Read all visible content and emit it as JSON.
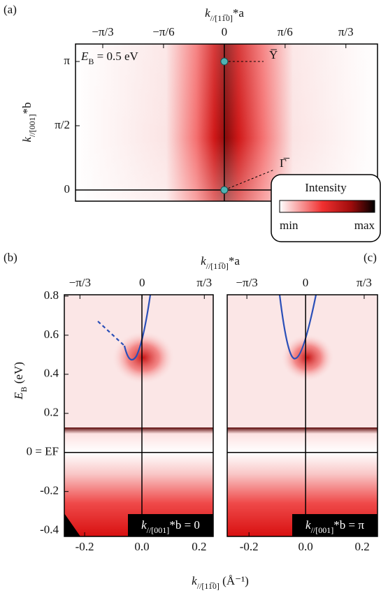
{
  "chart_data": [
    {
      "type": "heatmap",
      "panel_label": "(a)",
      "xlabel": [
        "k",
        "//[11̅0]",
        "*a"
      ],
      "ylabel": [
        "k",
        "//[001]",
        "*b"
      ],
      "inset": [
        "E",
        "B",
        " = 0.5 eV"
      ],
      "annotations": [
        "Y̅",
        "Γ̅"
      ],
      "colorbar": {
        "title": "Intensity",
        "min_label": "min",
        "max_label": "max"
      },
      "xlim": [
        -0.408,
        0.42
      ],
      "xticks": [
        {
          "value": -0.3333,
          "label": "−π/3"
        },
        {
          "value": -0.1667,
          "label": "−π/6"
        },
        0,
        {
          "value": 0.1667,
          "label": "π/6"
        },
        {
          "value": 0.3333,
          "label": "π/3"
        }
      ],
      "ylim": [
        -0.087,
        1.136
      ],
      "yticks": [
        0,
        {
          "value": 0.5,
          "label": "π/2"
        },
        {
          "value": 1,
          "label": "π"
        }
      ]
    },
    {
      "type": "heatmap",
      "panel_label": "(b)",
      "x2label": [
        "k",
        "//[11̅0]",
        "*a"
      ],
      "xlabel": [
        "k",
        "//[11̅0]",
        " (Å⁻¹)"
      ],
      "ylabel": [
        "E",
        "B",
        " (eV)"
      ],
      "tag": [
        "k",
        "//[001]",
        "*b = 0"
      ],
      "xlim": [
        -0.271,
        0.249
      ],
      "xticks": [
        {
          "value": -0.2,
          "label": "-0.2"
        },
        {
          "value": 0,
          "label": "0.0"
        },
        {
          "value": 0.2,
          "label": "0.2"
        }
      ],
      "x2lim": [
        -0.417,
        0.381
      ],
      "x2ticks": [
        {
          "value": -0.3333,
          "label": "−π/3"
        },
        0,
        {
          "value": 0.3333,
          "label": "π/3"
        }
      ],
      "ylim": [
        -0.43,
        0.807
      ],
      "yticks": [
        {
          "value": -0.4,
          "label": "-0.4"
        },
        {
          "value": -0.2,
          "label": "-0.2"
        },
        {
          "value": 0,
          "label": "0 = EF"
        },
        0.2,
        0.4,
        0.6,
        0.8
      ]
    },
    {
      "type": "heatmap",
      "panel_label": "(c)",
      "tag": [
        "k",
        "//[001]",
        "*b = π"
      ],
      "xlim": [
        -0.277,
        0.254
      ],
      "xticks": [
        {
          "value": -0.2,
          "label": "-0.2"
        },
        {
          "value": 0,
          "label": "0.0"
        },
        {
          "value": 0.2,
          "label": "0.2"
        }
      ],
      "x2lim": [
        -0.445,
        0.409
      ],
      "x2ticks": [
        {
          "value": -0.3333,
          "label": "−π/3"
        },
        0,
        {
          "value": 0.3333,
          "label": "π/3"
        }
      ],
      "ylim": [
        -0.43,
        0.807
      ]
    }
  ]
}
